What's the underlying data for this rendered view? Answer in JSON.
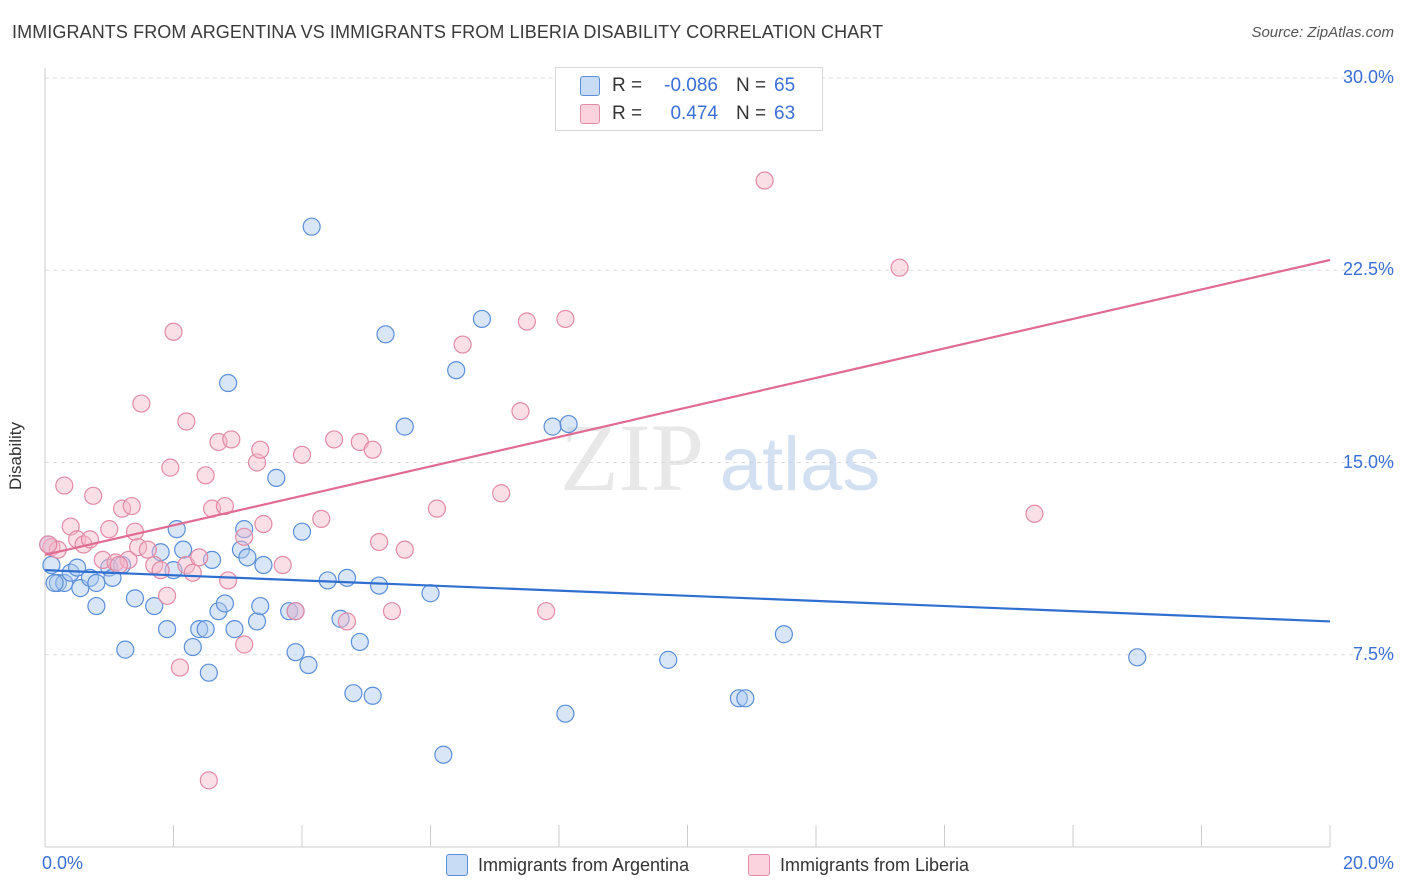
{
  "title": "IMMIGRANTS FROM ARGENTINA VS IMMIGRANTS FROM LIBERIA DISABILITY CORRELATION CHART",
  "source": "Source: ZipAtlas.com",
  "watermark": {
    "zip": "ZIP",
    "atlas": "atlas"
  },
  "legend_top": {
    "rows": [
      {
        "r_label": "R =",
        "r_value": "-0.086",
        "n_label": "N =",
        "n_value": "65",
        "color": "#a9c8f0"
      },
      {
        "r_label": "R =",
        "r_value": "0.474",
        "n_label": "N =",
        "n_value": "63",
        "color": "#f7b8c9"
      }
    ]
  },
  "legend_bottom": {
    "argentina": "Immigrants from Argentina",
    "liberia": "Immigrants from Liberia"
  },
  "colors": {
    "argentina_fill": "#a9c8f0",
    "argentina_stroke": "#5b8fd8",
    "argentina_line": "#2f6fcf",
    "liberia_fill": "#f7b8c9",
    "liberia_stroke": "#e28aa6",
    "liberia_line": "#e06b93",
    "tick_text": "#3b6fd6",
    "grid": "#dddddd"
  },
  "chart_data": {
    "type": "scatter",
    "title": "IMMIGRANTS FROM ARGENTINA VS IMMIGRANTS FROM LIBERIA DISABILITY CORRELATION CHART",
    "xlabel": "",
    "ylabel": "Disability",
    "xlim": [
      0,
      20
    ],
    "ylim": [
      0,
      30
    ],
    "x_tick_labels": [
      "0.0%",
      "20.0%"
    ],
    "y_ticks": [
      7.5,
      15.0,
      22.5,
      30.0
    ],
    "y_tick_labels": [
      "7.5%",
      "15.0%",
      "22.5%",
      "30.0%"
    ],
    "grid": true,
    "series": [
      {
        "name": "Immigrants from Argentina",
        "trend": {
          "x": [
            0,
            20
          ],
          "y": [
            10.8,
            8.8
          ]
        },
        "points": [
          [
            0.05,
            11.8
          ],
          [
            0.1,
            11.0
          ],
          [
            0.2,
            10.3
          ],
          [
            0.3,
            10.3
          ],
          [
            0.4,
            10.7
          ],
          [
            0.5,
            10.9
          ],
          [
            0.55,
            10.1
          ],
          [
            0.7,
            10.5
          ],
          [
            0.8,
            10.3
          ],
          [
            1.0,
            10.9
          ],
          [
            1.2,
            11.0
          ],
          [
            1.05,
            10.5
          ],
          [
            0.8,
            9.4
          ],
          [
            1.4,
            9.7
          ],
          [
            1.7,
            9.4
          ],
          [
            1.8,
            11.5
          ],
          [
            1.9,
            8.5
          ],
          [
            2.0,
            10.8
          ],
          [
            2.05,
            12.4
          ],
          [
            2.15,
            11.6
          ],
          [
            2.3,
            7.8
          ],
          [
            2.4,
            8.5
          ],
          [
            2.5,
            8.5
          ],
          [
            2.55,
            6.8
          ],
          [
            2.6,
            11.2
          ],
          [
            2.7,
            9.2
          ],
          [
            2.8,
            9.5
          ],
          [
            2.85,
            18.1
          ],
          [
            2.95,
            8.5
          ],
          [
            3.05,
            11.6
          ],
          [
            3.1,
            12.4
          ],
          [
            3.15,
            11.3
          ],
          [
            3.3,
            8.8
          ],
          [
            3.35,
            9.4
          ],
          [
            3.4,
            11.0
          ],
          [
            3.6,
            14.4
          ],
          [
            3.8,
            9.2
          ],
          [
            3.9,
            9.2
          ],
          [
            3.9,
            7.6
          ],
          [
            4.0,
            12.3
          ],
          [
            4.1,
            7.1
          ],
          [
            4.15,
            24.2
          ],
          [
            4.4,
            10.4
          ],
          [
            4.6,
            8.9
          ],
          [
            4.7,
            10.5
          ],
          [
            4.8,
            6.0
          ],
          [
            4.9,
            8.0
          ],
          [
            5.1,
            5.9
          ],
          [
            5.2,
            10.2
          ],
          [
            5.3,
            20.0
          ],
          [
            5.6,
            16.4
          ],
          [
            6.0,
            9.9
          ],
          [
            6.2,
            3.6
          ],
          [
            6.4,
            18.6
          ],
          [
            6.8,
            20.6
          ],
          [
            7.9,
            16.4
          ],
          [
            8.1,
            5.2
          ],
          [
            8.15,
            16.5
          ],
          [
            9.7,
            7.3
          ],
          [
            10.8,
            5.8
          ],
          [
            10.9,
            5.8
          ],
          [
            11.5,
            8.3
          ],
          [
            17.0,
            7.4
          ],
          [
            0.15,
            10.3
          ],
          [
            1.25,
            7.7
          ]
        ]
      },
      {
        "name": "Immigrants from Liberia",
        "trend": {
          "x": [
            0,
            20
          ],
          "y": [
            11.4,
            22.9
          ]
        },
        "points": [
          [
            0.1,
            11.7
          ],
          [
            0.2,
            11.6
          ],
          [
            0.3,
            14.1
          ],
          [
            0.4,
            12.5
          ],
          [
            0.5,
            12.0
          ],
          [
            0.6,
            11.8
          ],
          [
            0.75,
            13.7
          ],
          [
            0.9,
            11.2
          ],
          [
            1.0,
            12.4
          ],
          [
            1.1,
            11.1
          ],
          [
            1.2,
            13.2
          ],
          [
            1.3,
            11.2
          ],
          [
            1.35,
            13.3
          ],
          [
            1.4,
            12.3
          ],
          [
            1.45,
            11.7
          ],
          [
            1.5,
            17.3
          ],
          [
            1.6,
            11.6
          ],
          [
            1.7,
            11.0
          ],
          [
            1.8,
            10.8
          ],
          [
            1.9,
            9.8
          ],
          [
            1.95,
            14.8
          ],
          [
            2.0,
            20.1
          ],
          [
            2.1,
            7.0
          ],
          [
            2.2,
            11.0
          ],
          [
            2.2,
            16.6
          ],
          [
            2.3,
            10.7
          ],
          [
            2.4,
            11.3
          ],
          [
            2.5,
            14.5
          ],
          [
            2.55,
            2.6
          ],
          [
            2.6,
            13.2
          ],
          [
            2.7,
            15.8
          ],
          [
            2.8,
            13.3
          ],
          [
            2.85,
            10.4
          ],
          [
            2.9,
            15.9
          ],
          [
            3.1,
            7.9
          ],
          [
            3.1,
            12.1
          ],
          [
            3.3,
            15.0
          ],
          [
            3.35,
            15.5
          ],
          [
            3.4,
            12.6
          ],
          [
            3.7,
            11.0
          ],
          [
            3.9,
            9.2
          ],
          [
            4.0,
            15.3
          ],
          [
            4.3,
            12.8
          ],
          [
            4.5,
            15.9
          ],
          [
            4.7,
            8.8
          ],
          [
            4.9,
            15.8
          ],
          [
            5.1,
            15.5
          ],
          [
            5.2,
            11.9
          ],
          [
            5.4,
            9.2
          ],
          [
            5.6,
            11.6
          ],
          [
            6.1,
            13.2
          ],
          [
            6.5,
            19.6
          ],
          [
            7.1,
            13.8
          ],
          [
            7.4,
            17.0
          ],
          [
            7.5,
            20.5
          ],
          [
            7.8,
            9.2
          ],
          [
            8.1,
            20.6
          ],
          [
            11.2,
            26.0
          ],
          [
            13.3,
            22.6
          ],
          [
            15.4,
            13.0
          ],
          [
            0.05,
            11.8
          ],
          [
            0.7,
            12.0
          ],
          [
            1.15,
            11.0
          ]
        ]
      }
    ]
  }
}
